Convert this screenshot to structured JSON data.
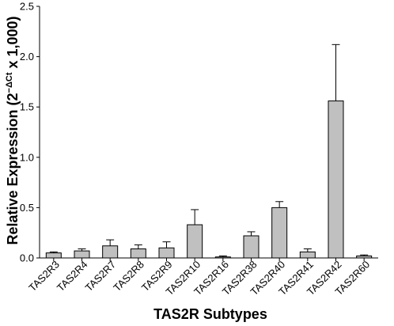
{
  "chart_data": {
    "type": "bar",
    "title": "",
    "xlabel": "TAS2R Subtypes",
    "ylabel_parts": {
      "main": "Relative Expression",
      "open": "(2",
      "sup": "−ΔCt",
      "rest": " x 1,000)"
    },
    "ylim": [
      0,
      2.5
    ],
    "yticks": [
      0.0,
      0.5,
      1.0,
      1.5,
      2.0,
      2.5
    ],
    "ytick_labels": [
      "0.0",
      "0.5",
      "1.0",
      "1.5",
      "2.0",
      "2.5"
    ],
    "categories": [
      "TAS2R3",
      "TAS2R4",
      "TAS2R7",
      "TAS2R8",
      "TAS2R9",
      "TAS2R10",
      "TAS2R16",
      "TAS2R38",
      "TAS2R40",
      "TAS2R41",
      "TAS2R42",
      "TAS2R60"
    ],
    "values": [
      0.05,
      0.07,
      0.12,
      0.09,
      0.1,
      0.33,
      0.01,
      0.22,
      0.5,
      0.06,
      1.56,
      0.02
    ],
    "errors": [
      0.01,
      0.02,
      0.06,
      0.04,
      0.06,
      0.15,
      0.01,
      0.04,
      0.06,
      0.03,
      0.56,
      0.01
    ],
    "bar_color": "#c0c0c0",
    "bar_stroke": "#000000",
    "grid": false,
    "legend": "none"
  }
}
